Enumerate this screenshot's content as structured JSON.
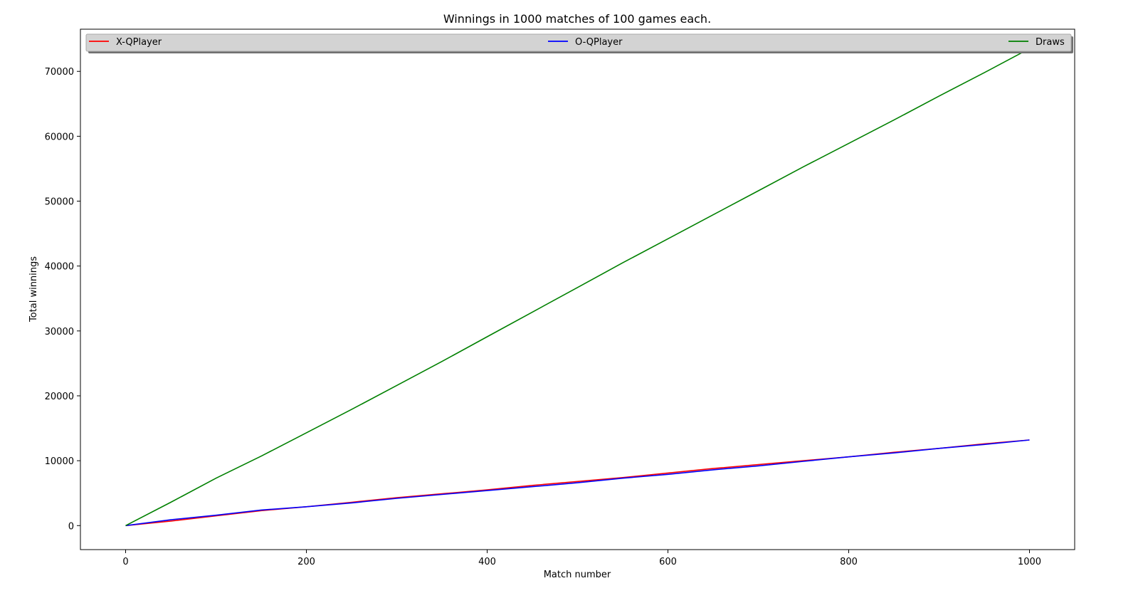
{
  "chart_data": {
    "type": "line",
    "title": "Winnings in 1000 matches of 100 games each.",
    "xlabel": "Match number",
    "ylabel": "Total winnings",
    "xlim": [
      -50,
      1050
    ],
    "ylim": [
      -3700,
      76500
    ],
    "xticks": [
      0,
      200,
      400,
      600,
      800,
      1000
    ],
    "yticks": [
      0,
      10000,
      20000,
      30000,
      40000,
      50000,
      60000,
      70000
    ],
    "grid": false,
    "legend": "top, spread across full width",
    "series": [
      {
        "name": "X-QPlayer",
        "color": "#ff0000",
        "x": [
          0,
          50,
          100,
          150,
          200,
          250,
          300,
          350,
          400,
          450,
          500,
          550,
          600,
          650,
          700,
          750,
          800,
          850,
          900,
          950,
          1000
        ],
        "y": [
          0,
          700,
          1500,
          2300,
          2900,
          3600,
          4300,
          4900,
          5500,
          6200,
          6800,
          7400,
          8100,
          8800,
          9400,
          10000,
          10600,
          11300,
          11900,
          12600,
          13200
        ]
      },
      {
        "name": "O-QPlayer",
        "color": "#0000ff",
        "x": [
          0,
          50,
          100,
          150,
          200,
          250,
          300,
          350,
          400,
          450,
          500,
          550,
          600,
          650,
          700,
          750,
          800,
          850,
          900,
          950,
          1000
        ],
        "y": [
          0,
          900,
          1600,
          2400,
          2900,
          3500,
          4200,
          4800,
          5400,
          6000,
          6600,
          7300,
          7900,
          8600,
          9200,
          9900,
          10600,
          11200,
          11900,
          12500,
          13200
        ]
      },
      {
        "name": "Draws",
        "color": "#008000",
        "x": [
          0,
          50,
          100,
          150,
          200,
          250,
          300,
          350,
          400,
          450,
          500,
          550,
          600,
          650,
          700,
          750,
          800,
          850,
          900,
          950,
          1000
        ],
        "y": [
          0,
          3600,
          7300,
          10700,
          14300,
          17900,
          21600,
          25300,
          29100,
          32900,
          36700,
          40500,
          44200,
          47900,
          51600,
          55300,
          58900,
          62500,
          66200,
          69800,
          73500
        ]
      }
    ]
  }
}
